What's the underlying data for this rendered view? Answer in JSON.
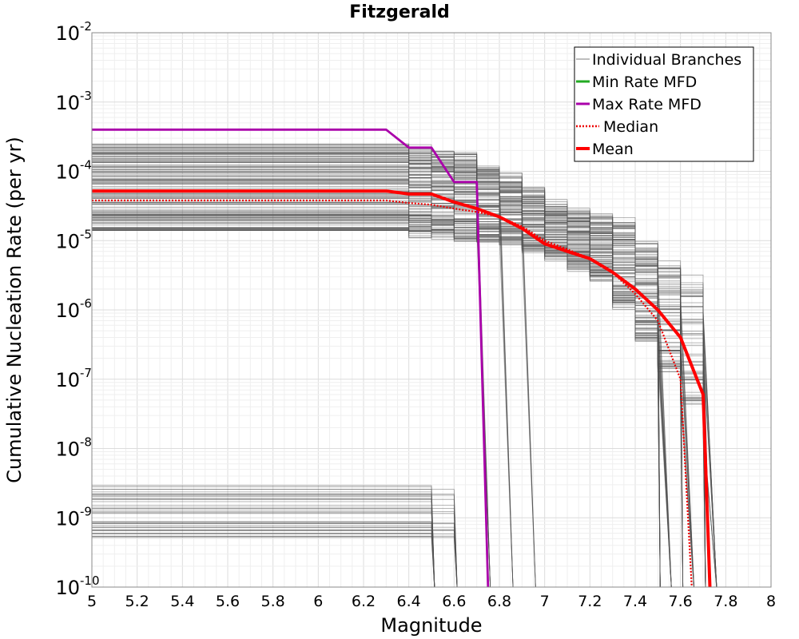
{
  "chart_data": {
    "type": "line",
    "title": "Fitzgerald",
    "xlabel": "Magnitude",
    "ylabel": "Cumulative Nucleation Rate (per yr)",
    "xlim": [
      5,
      8
    ],
    "ylim": [
      1e-10,
      0.01
    ],
    "yscale": "log",
    "grid": true,
    "legend_position": "top-right",
    "x_ticks": [
      "5",
      "5.2",
      "5.4",
      "5.6",
      "5.8",
      "6",
      "6.2",
      "6.4",
      "6.6",
      "6.8",
      "7",
      "7.2",
      "7.4",
      "7.6",
      "7.8",
      "8"
    ],
    "y_ticks": [
      {
        "base": "10",
        "exp": "-2",
        "value": 0.01
      },
      {
        "base": "10",
        "exp": "-3",
        "value": 0.001
      },
      {
        "base": "10",
        "exp": "-4",
        "value": 0.0001
      },
      {
        "base": "10",
        "exp": "-5",
        "value": 1e-05
      },
      {
        "base": "10",
        "exp": "-6",
        "value": 1e-06
      },
      {
        "base": "10",
        "exp": "-7",
        "value": 1e-07
      },
      {
        "base": "10",
        "exp": "-8",
        "value": 1e-08
      },
      {
        "base": "10",
        "exp": "-9",
        "value": 1e-09
      },
      {
        "base": "10",
        "exp": "-10",
        "value": 1e-10
      }
    ],
    "series": [
      {
        "name": "Individual Branches",
        "color": "#505050",
        "style": "thin",
        "note_values": "hundreds of branch curves; envelope shown via representative sample",
        "upper_envelope": {
          "x": [
            5.0,
            6.3,
            6.5,
            6.6,
            6.8,
            7.0,
            7.2,
            7.3,
            7.4,
            7.5,
            7.6,
            7.7
          ],
          "y": [
            0.00026,
            0.00026,
            0.0002,
            0.00018,
            8.5e-05,
            3.5e-05,
            2.2e-05,
            2e-05,
            9e-06,
            5e-06,
            3e-06,
            1.5e-06
          ]
        },
        "lower_envelope": {
          "x": [
            5.0,
            6.3,
            6.5,
            6.6,
            6.8,
            7.0,
            7.2,
            7.3,
            7.4,
            7.5,
            7.6,
            7.7
          ],
          "y": [
            1.4e-05,
            1.4e-05,
            1.2e-05,
            1.1e-05,
            1e-05,
            6e-06,
            3e-06,
            1.2e-06,
            4e-07,
            1.5e-07,
            5e-08,
            2e-08
          ]
        },
        "low_group": {
          "x_end_values": [
            6.5,
            6.6
          ],
          "y_range": [
            5e-10,
            3e-09
          ]
        }
      },
      {
        "name": "Min Rate MFD",
        "color": "#22aa22",
        "style": "solid",
        "x": [],
        "y": []
      },
      {
        "name": "Max Rate MFD",
        "color": "#aa00aa",
        "style": "solid",
        "x": [
          5.0,
          6.3,
          6.4,
          6.5,
          6.6,
          6.7,
          6.75
        ],
        "y": [
          0.0004,
          0.0004,
          0.00022,
          0.00022,
          7e-05,
          7e-05,
          1e-10
        ]
      },
      {
        "name": "Median",
        "color": "#ee0000",
        "style": "dotted",
        "x": [
          5.0,
          6.3,
          6.4,
          6.5,
          6.6,
          6.7,
          6.8,
          6.9,
          7.0,
          7.1,
          7.2,
          7.3,
          7.4,
          7.5,
          7.6,
          7.65
        ],
        "y": [
          3.8e-05,
          3.8e-05,
          3.5e-05,
          3.3e-05,
          2.9e-05,
          2.6e-05,
          2.2e-05,
          1.6e-05,
          1e-05,
          7.5e-06,
          5.5e-06,
          3.5e-06,
          1.7e-06,
          7e-07,
          1e-07,
          1e-10
        ]
      },
      {
        "name": "Mean",
        "color": "#ff0000",
        "style": "thick",
        "x": [
          5.0,
          6.3,
          6.4,
          6.5,
          6.6,
          6.7,
          6.8,
          6.9,
          7.0,
          7.1,
          7.2,
          7.3,
          7.4,
          7.5,
          7.6,
          7.7,
          7.73
        ],
        "y": [
          5.2e-05,
          5.2e-05,
          4.7e-05,
          4.7e-05,
          3.6e-05,
          2.9e-05,
          2.2e-05,
          1.5e-05,
          9e-06,
          7e-06,
          5.5e-06,
          3.5e-06,
          2e-06,
          1e-06,
          4e-07,
          6e-08,
          1e-10
        ]
      }
    ]
  }
}
